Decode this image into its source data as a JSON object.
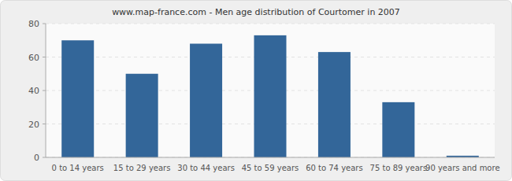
{
  "chart_data": {
    "type": "bar",
    "title": "www.map-france.com - Men age distribution of Courtomer in 2007",
    "categories": [
      "0 to 14 years",
      "15 to 29 years",
      "30 to 44 years",
      "45 to 59 years",
      "60 to 74 years",
      "75 to 89 years",
      "90 years and more"
    ],
    "values": [
      70,
      50,
      68,
      73,
      63,
      33,
      1
    ],
    "color": "#336699",
    "ylim": [
      0,
      80
    ],
    "yticks": [
      0,
      20,
      40,
      60,
      80
    ],
    "grid": true
  }
}
